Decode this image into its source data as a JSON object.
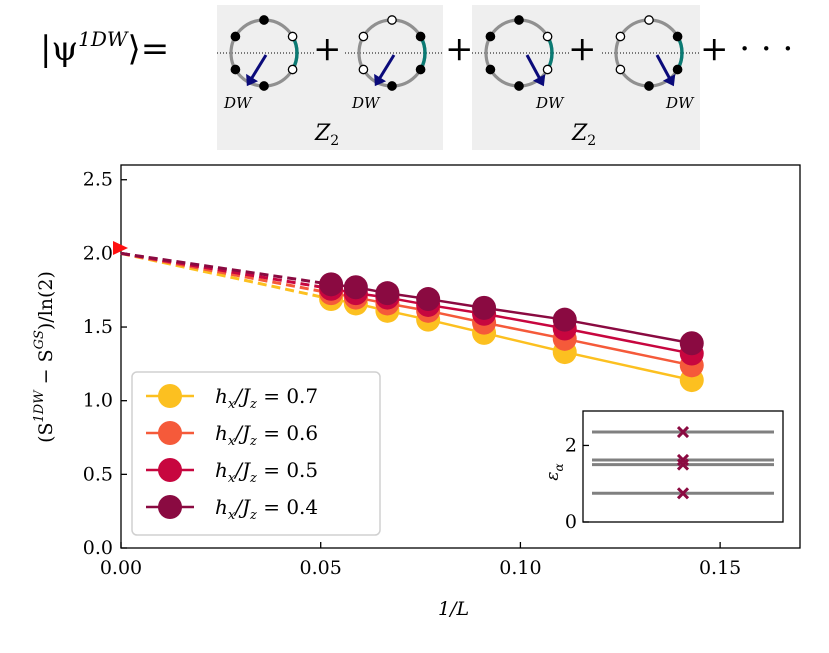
{
  "equation": {
    "lhs": "|ψ",
    "lhs_sup": "1DW",
    "lhs_close": "⟩=",
    "plus": "+",
    "ellipsis": "+ · · ·",
    "dw_label": "DW",
    "z2_label": "Z",
    "z2_sub": "2"
  },
  "colors": {
    "h07": "#fcc020",
    "h06": "#f55a3a",
    "h05": "#c7063f",
    "h04": "#8a0a41",
    "ring_gray": "#909090",
    "ring_teal": "#0b7a73",
    "arrow_navy": "#0a0a7a",
    "box_bg": "#efefef",
    "axis": "#000000",
    "marker_start": "#ff1010",
    "inset_line": "#808080",
    "inset_marker": "#8a0a41"
  },
  "chart_data": [
    {
      "type": "line",
      "title": "",
      "xlabel": "1/L",
      "ylabel_text": "(S",
      "ylabel_sup1": "1DW",
      "ylabel_mid": " − S",
      "ylabel_sup2": "GS",
      "ylabel_end": ")/ln(2)",
      "xlim": [
        0.0,
        0.17
      ],
      "ylim": [
        0.0,
        2.6
      ],
      "xticks": [
        0.0,
        0.05,
        0.1,
        0.15
      ],
      "xtick_labels": [
        "0.00",
        "0.05",
        "0.10",
        "0.15"
      ],
      "yticks": [
        0.0,
        0.5,
        1.0,
        1.5,
        2.0,
        2.5
      ],
      "ytick_labels": [
        "0.0",
        "0.5",
        "1.0",
        "1.5",
        "2.0",
        "2.5"
      ],
      "x": [
        0.0526,
        0.0588,
        0.0667,
        0.0769,
        0.0909,
        0.1111,
        0.1429
      ],
      "extrapolation_start": {
        "x": 0.0,
        "y": 2.0
      },
      "legend_position": "lower-left",
      "series": [
        {
          "key": "h07",
          "label": "h",
          "label_sub": "x",
          "label_mid": "/J",
          "label_sub2": "z",
          "label_val": " = 0.7",
          "values": [
            1.69,
            1.66,
            1.61,
            1.55,
            1.46,
            1.33,
            1.14
          ]
        },
        {
          "key": "h06",
          "label": "h",
          "label_sub": "x",
          "label_mid": "/J",
          "label_sub2": "z",
          "label_val": " = 0.6",
          "values": [
            1.73,
            1.7,
            1.66,
            1.61,
            1.53,
            1.42,
            1.24
          ]
        },
        {
          "key": "h05",
          "label": "h",
          "label_sub": "x",
          "label_mid": "/J",
          "label_sub2": "z",
          "label_val": " = 0.5",
          "values": [
            1.76,
            1.73,
            1.7,
            1.65,
            1.59,
            1.49,
            1.32
          ]
        },
        {
          "key": "h04",
          "label": "h",
          "label_sub": "x",
          "label_mid": "/J",
          "label_sub2": "z",
          "label_val": " = 0.4",
          "values": [
            1.79,
            1.77,
            1.73,
            1.69,
            1.63,
            1.55,
            1.39
          ]
        }
      ]
    },
    {
      "type": "scatter",
      "title": "inset",
      "ylabel": "ε",
      "ylabel_sub": "α",
      "ylim": [
        0,
        2.9
      ],
      "yticks": [
        0,
        2
      ],
      "ytick_labels": [
        "0",
        "2"
      ],
      "levels": [
        0.75,
        1.5,
        1.62,
        2.35
      ]
    }
  ]
}
